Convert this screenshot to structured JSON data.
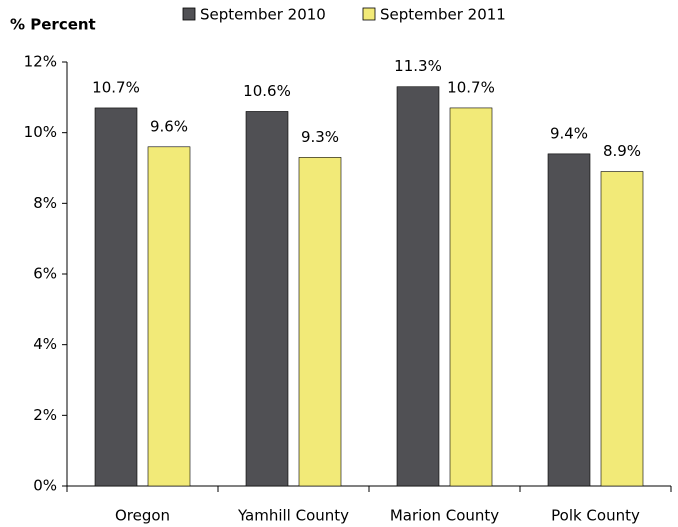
{
  "chart_data": {
    "type": "bar",
    "title": "% Percent",
    "categories": [
      "Oregon",
      "Yamhill County",
      "Marion County",
      "Polk County"
    ],
    "series": [
      {
        "name": "September 2010",
        "color": "#505054",
        "values": [
          10.7,
          10.6,
          11.3,
          9.4
        ],
        "value_labels": [
          "10.7%",
          "10.6%",
          "11.3%",
          "9.4%"
        ]
      },
      {
        "name": "September 2011",
        "color": "#f2ea78",
        "values": [
          9.6,
          9.3,
          10.7,
          8.9
        ],
        "value_labels": [
          "9.6%",
          "9.3%",
          "10.7%",
          "8.9%"
        ]
      }
    ],
    "ylim": [
      0,
      12
    ],
    "yticks": [
      {
        "value": 0,
        "label": "0%"
      },
      {
        "value": 2,
        "label": "2%"
      },
      {
        "value": 4,
        "label": "4%"
      },
      {
        "value": 6,
        "label": "6%"
      },
      {
        "value": 8,
        "label": "8%"
      },
      {
        "value": 10,
        "label": "10%"
      },
      {
        "value": 12,
        "label": "12%"
      }
    ],
    "legend": "top"
  }
}
